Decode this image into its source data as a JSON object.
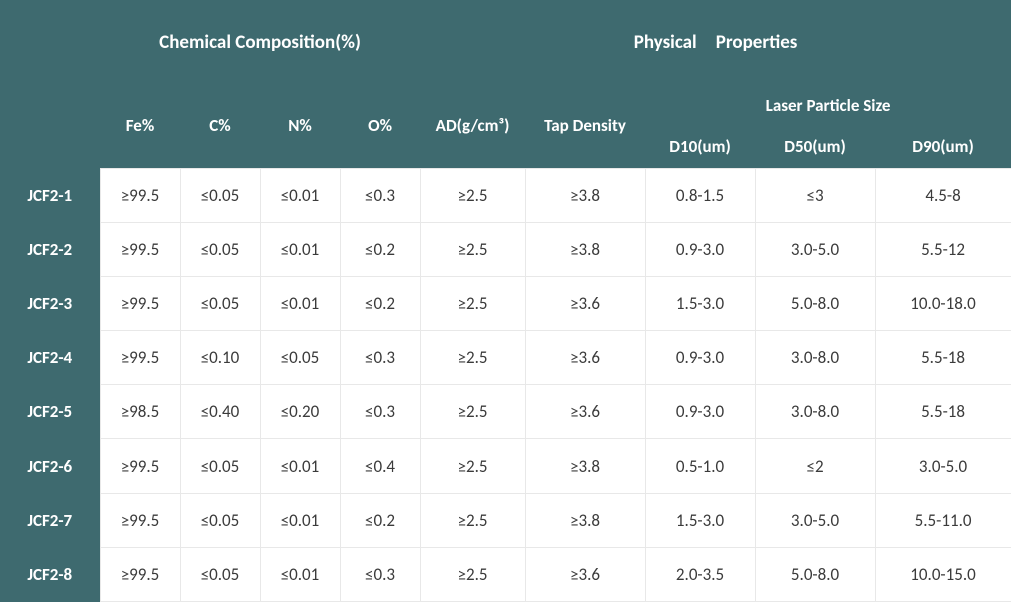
{
  "colors": {
    "teal": "#3e6a6f",
    "white": "#ffffff",
    "cell_text": "#3b3b3b",
    "cell_border": "#e8e8e8"
  },
  "typography": {
    "header_fontsize_top": 19,
    "header_fontsize_sub": 17,
    "cell_fontsize": 17,
    "font_family": "Calibri"
  },
  "header": {
    "group_chemical": "Chemical Composition(%)",
    "group_physical": "Physical Properties",
    "group_laser": "Laser Particle Size",
    "fe": "Fe%",
    "c": "C%",
    "n": "N%",
    "o": "O%",
    "ad": "AD(g/cm³)",
    "tap": "Tap Density",
    "d10": "D10(um)",
    "d50": "D50(um)",
    "d90": "D90(um)"
  },
  "rows": [
    {
      "label": "JCF2-1",
      "fe": "≥99.5",
      "c": "≤0.05",
      "n": "≤0.01",
      "o": "≤0.3",
      "ad": "≥2.5",
      "tap": "≥3.8",
      "d10": "0.8-1.5",
      "d50": "≤3",
      "d90": "4.5-8"
    },
    {
      "label": "JCF2-2",
      "fe": "≥99.5",
      "c": "≤0.05",
      "n": "≤0.01",
      "o": "≤0.2",
      "ad": "≥2.5",
      "tap": "≥3.8",
      "d10": "0.9-3.0",
      "d50": "3.0-5.0",
      "d90": "5.5-12"
    },
    {
      "label": "JCF2-3",
      "fe": "≥99.5",
      "c": "≤0.05",
      "n": "≤0.01",
      "o": "≤0.2",
      "ad": "≥2.5",
      "tap": "≥3.6",
      "d10": "1.5-3.0",
      "d50": "5.0-8.0",
      "d90": "10.0-18.0"
    },
    {
      "label": "JCF2-4",
      "fe": "≥99.5",
      "c": "≤0.10",
      "n": "≤0.05",
      "o": "≤0.3",
      "ad": "≥2.5",
      "tap": "≥3.6",
      "d10": "0.9-3.0",
      "d50": "3.0-8.0",
      "d90": "5.5-18"
    },
    {
      "label": "JCF2-5",
      "fe": "≥98.5",
      "c": "≤0.40",
      "n": "≤0.20",
      "o": "≤0.3",
      "ad": "≥2.5",
      "tap": "≥3.6",
      "d10": "0.9-3.0",
      "d50": "3.0-8.0",
      "d90": "5.5-18"
    },
    {
      "label": "JCF2-6",
      "fe": "≥99.5",
      "c": "≤0.05",
      "n": "≤0.01",
      "o": "≤0.4",
      "ad": "≥2.5",
      "tap": "≥3.8",
      "d10": "0.5-1.0",
      "d50": "≤2",
      "d90": "3.0-5.0"
    },
    {
      "label": "JCF2-7",
      "fe": "≥99.5",
      "c": "≤0.05",
      "n": "≤0.01",
      "o": "≤0.2",
      "ad": "≥2.5",
      "tap": "≥3.8",
      "d10": "1.5-3.0",
      "d50": "3.0-5.0",
      "d90": "5.5-11.0"
    },
    {
      "label": "JCF2-8",
      "fe": "≥99.5",
      "c": "≤0.05",
      "n": "≤0.01",
      "o": "≤0.3",
      "ad": "≥2.5",
      "tap": "≥3.6",
      "d10": "2.0-3.5",
      "d50": "5.0-8.0",
      "d90": "10.0-15.0"
    }
  ]
}
